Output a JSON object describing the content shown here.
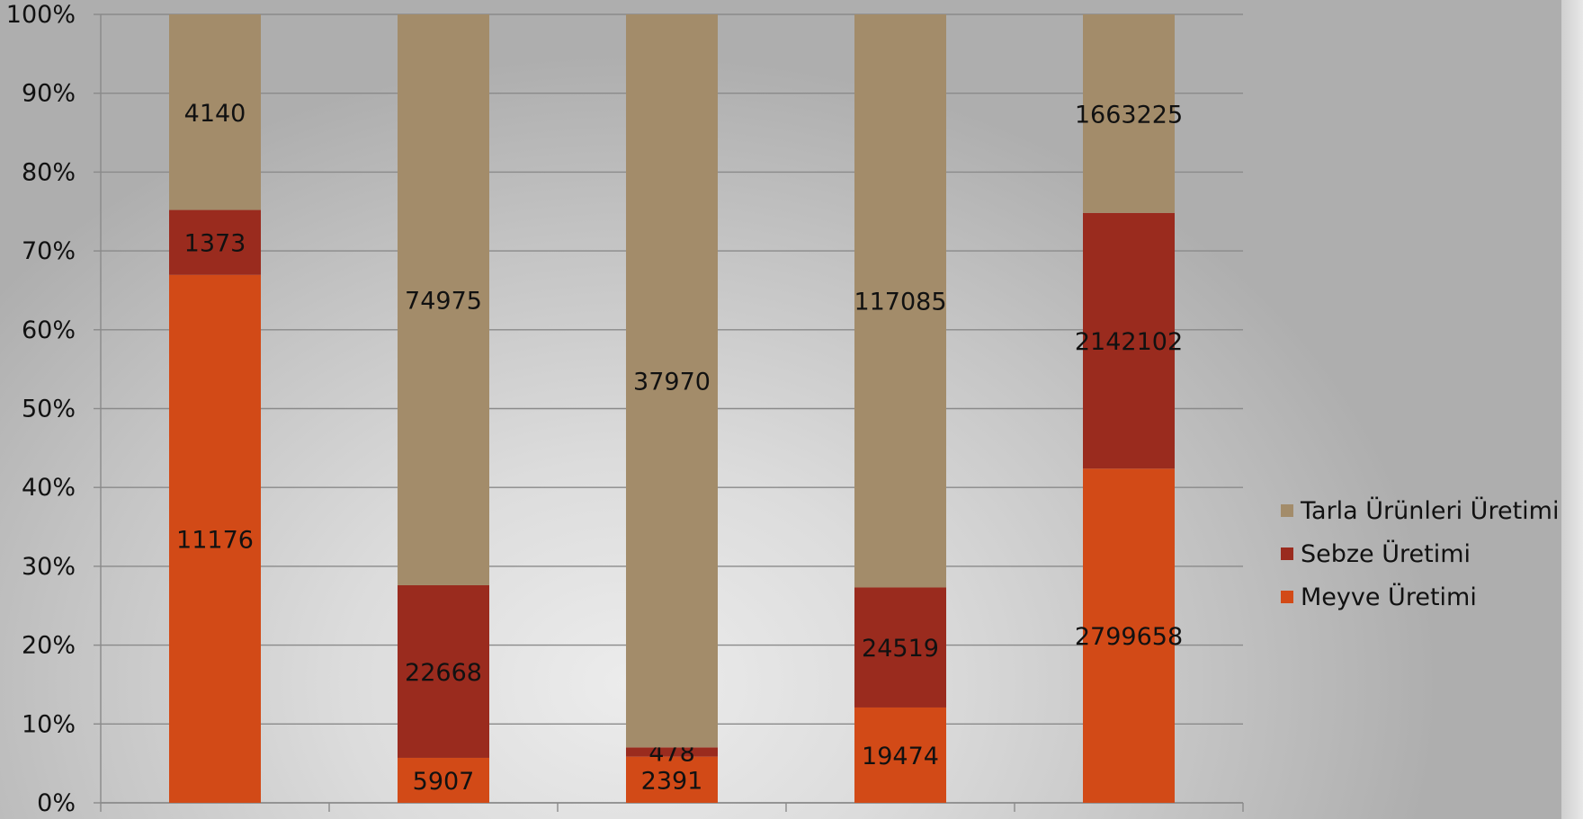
{
  "chart_data": {
    "type": "bar",
    "stacked": "percent",
    "categories": [
      "",
      "",
      "",
      "",
      ""
    ],
    "series": [
      {
        "name": "Meyve Üretimi",
        "color": "#d24a17",
        "values": [
          11176,
          5907,
          2391,
          19474,
          2799658
        ]
      },
      {
        "name": "Sebze Üretimi",
        "color": "#9a2b1e",
        "values": [
          1373,
          22668,
          478,
          24519,
          2142102
        ]
      },
      {
        "name": "Tarla Ürünleri Üretimi",
        "color": "#a38c6a",
        "values": [
          4140,
          74975,
          37970,
          117085,
          1663225
        ]
      }
    ],
    "ylim": [
      0,
      100
    ],
    "yticks": [
      "0%",
      "10%",
      "20%",
      "30%",
      "40%",
      "50%",
      "60%",
      "70%",
      "80%",
      "90%",
      "100%"
    ],
    "grid": true,
    "legend_position": "right",
    "title": "",
    "xlabel": "",
    "ylabel": ""
  },
  "legend": {
    "items": [
      {
        "label": "Tarla Ürünleri Üretimi",
        "color": "#a38c6a"
      },
      {
        "label": "Sebze Üretimi",
        "color": "#9a2b1e"
      },
      {
        "label": "Meyve Üretimi",
        "color": "#d24a17"
      }
    ]
  }
}
